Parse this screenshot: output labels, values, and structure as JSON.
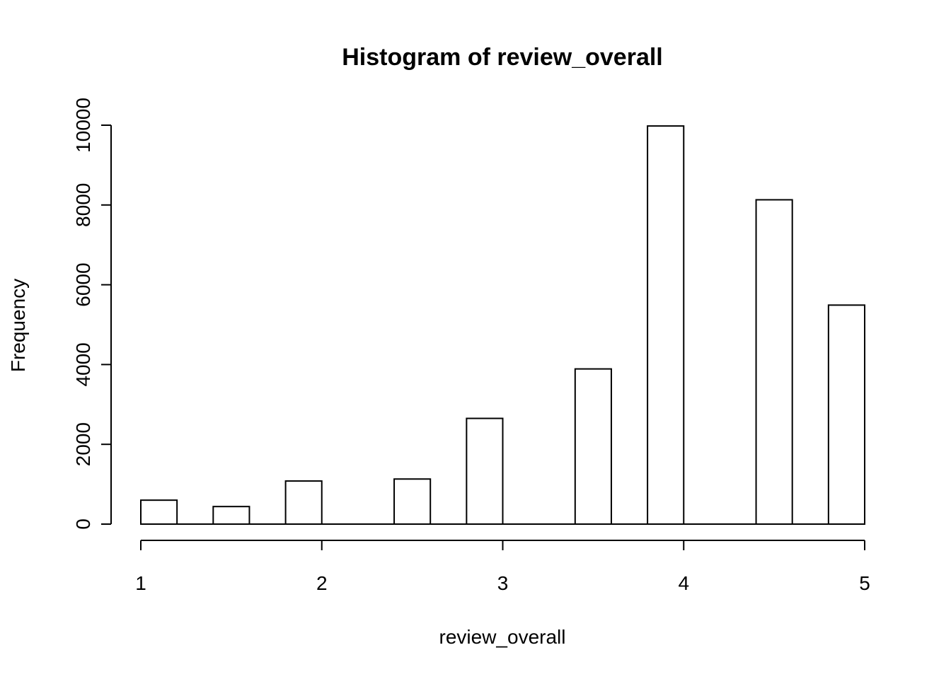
{
  "chart_data": {
    "type": "bar",
    "title": "Histogram of review_overall",
    "xlabel": "review_overall",
    "ylabel": "Frequency",
    "bins": [
      {
        "x0": 1.0,
        "x1": 1.2,
        "count": 600
      },
      {
        "x0": 1.4,
        "x1": 1.6,
        "count": 440
      },
      {
        "x0": 1.8,
        "x1": 2.0,
        "count": 1080
      },
      {
        "x0": 2.4,
        "x1": 2.6,
        "count": 1130
      },
      {
        "x0": 2.8,
        "x1": 3.0,
        "count": 2650
      },
      {
        "x0": 3.4,
        "x1": 3.6,
        "count": 3890
      },
      {
        "x0": 3.8,
        "x1": 4.0,
        "count": 9980
      },
      {
        "x0": 4.4,
        "x1": 4.6,
        "count": 8130
      },
      {
        "x0": 4.8,
        "x1": 5.0,
        "count": 5490
      }
    ],
    "xlim": [
      1,
      5
    ],
    "ylim": [
      0,
      10000
    ],
    "x_ticks": [
      1,
      2,
      3,
      4,
      5
    ],
    "y_ticks": [
      0,
      2000,
      4000,
      6000,
      8000,
      10000
    ],
    "grid": false,
    "colors": {
      "bar_fill": "#ffffff",
      "bar_stroke": "#000000"
    }
  }
}
